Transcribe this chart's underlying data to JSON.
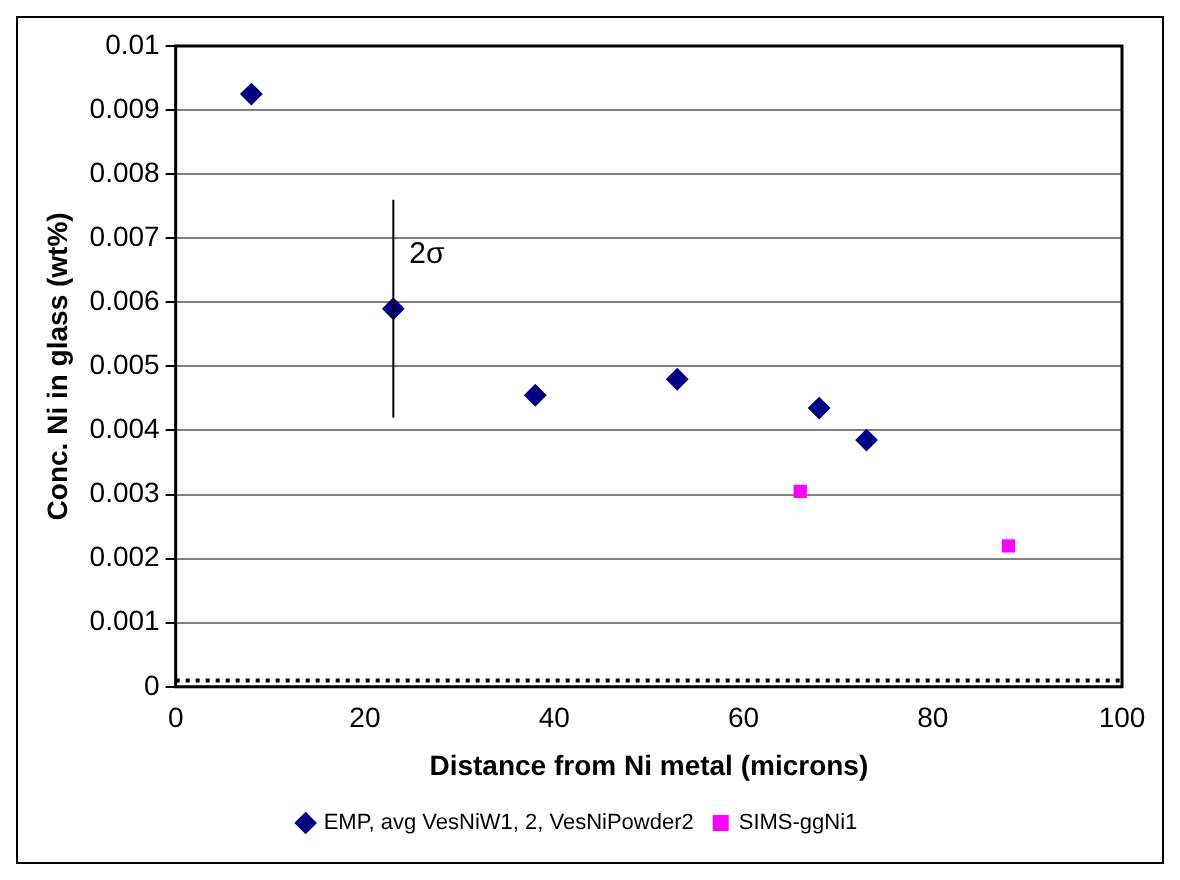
{
  "chart_data": {
    "type": "scatter",
    "xlabel": "Distance from Ni metal (microns)",
    "ylabel": "Conc. Ni in glass (wt%)",
    "xlim": [
      0,
      100
    ],
    "xticks": [
      0,
      20,
      40,
      60,
      80,
      100
    ],
    "ylim": [
      0,
      0.01
    ],
    "yticks": [
      0,
      0.001,
      0.002,
      0.003,
      0.004,
      0.005,
      0.006,
      0.007,
      0.008,
      0.009,
      0.01
    ],
    "grid": "y",
    "legend": "bottom",
    "series": [
      {
        "name": "EMP, avg VesNiW1, 2, VesNiPowder2",
        "color": "#000080",
        "marker": "diamond",
        "x": [
          8,
          23,
          38,
          53,
          68,
          73
        ],
        "values": [
          0.00925,
          0.0059,
          0.00455,
          0.0048,
          0.00435,
          0.00385
        ],
        "errors": [
          null,
          0.0017,
          null,
          null,
          null,
          null
        ]
      },
      {
        "name": "SIMS-ggNi1",
        "color": "#ff00ff",
        "marker": "square",
        "x": [
          66,
          88
        ],
        "values": [
          0.00305,
          0.0022
        ]
      }
    ],
    "ref_lines": [
      {
        "axis": "y",
        "value": 0.0001,
        "color": "#000000",
        "line_style": "dotted"
      }
    ],
    "annotations": [
      "2σ"
    ]
  }
}
